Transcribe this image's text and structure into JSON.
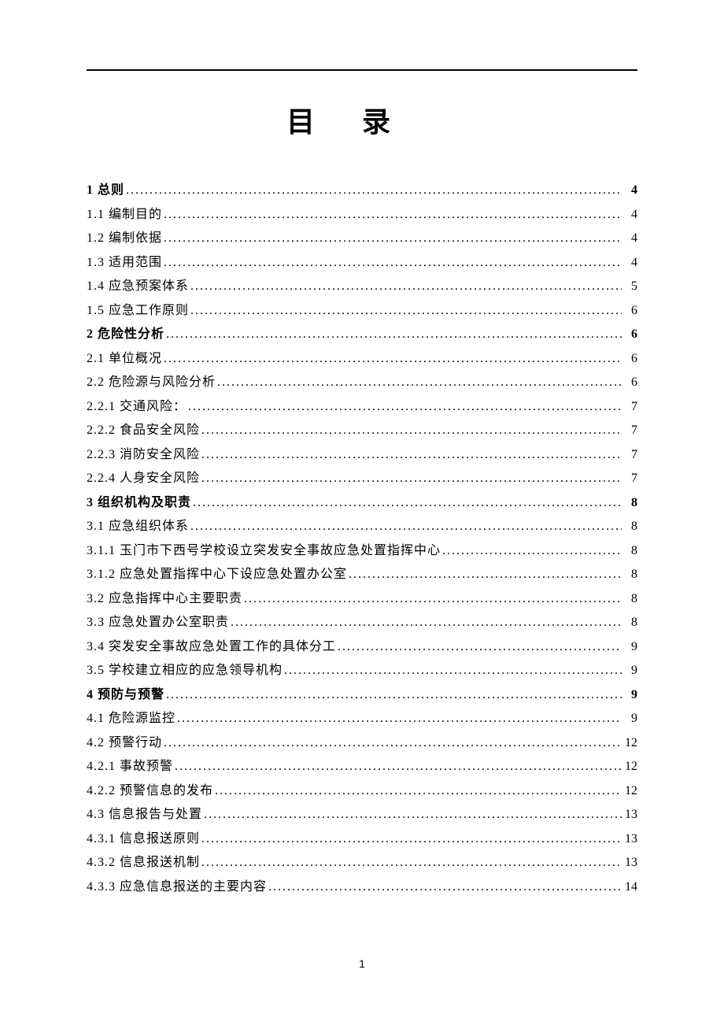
{
  "title": "目录",
  "page_number": "1",
  "entries": [
    {
      "label": "1 总则",
      "page": "4",
      "bold": true
    },
    {
      "label": "1.1 编制目的",
      "page": "4",
      "bold": false
    },
    {
      "label": "1.2 编制依据",
      "page": "4",
      "bold": false
    },
    {
      "label": "1.3 适用范围",
      "page": "4",
      "bold": false
    },
    {
      "label": "1.4 应急预案体系",
      "page": "5",
      "bold": false
    },
    {
      "label": "1.5 应急工作原则",
      "page": "6",
      "bold": false
    },
    {
      "label": "2 危险性分析",
      "page": "6",
      "bold": true
    },
    {
      "label": "2.1 单位概况",
      "page": "6",
      "bold": false
    },
    {
      "label": "2.2 危险源与风险分析",
      "page": "6",
      "bold": false
    },
    {
      "label": "2.2.1 交通风险：",
      "page": "7",
      "bold": false
    },
    {
      "label": "2.2.2 食品安全风险",
      "page": "7",
      "bold": false
    },
    {
      "label": "2.2.3 消防安全风险",
      "page": "7",
      "bold": false
    },
    {
      "label": "2.2.4 人身安全风险",
      "page": "7",
      "bold": false
    },
    {
      "label": "3 组织机构及职责",
      "page": "8",
      "bold": true
    },
    {
      "label": "3.1 应急组织体系",
      "page": "8",
      "bold": false
    },
    {
      "label": "3.1.1 玉门市下西号学校设立突发安全事故应急处置指挥中心",
      "page": "8",
      "bold": false
    },
    {
      "label": "3.1.2 应急处置指挥中心下设应急处置办公室",
      "page": "8",
      "bold": false
    },
    {
      "label": "3.2 应急指挥中心主要职责",
      "page": "8",
      "bold": false
    },
    {
      "label": "3.3 应急处置办公室职责",
      "page": "8",
      "bold": false
    },
    {
      "label": "3.4 突发安全事故应急处置工作的具体分工",
      "page": "9",
      "bold": false
    },
    {
      "label": "3.5 学校建立相应的应急领导机构",
      "page": "9",
      "bold": false
    },
    {
      "label": "4 预防与预警",
      "page": "9",
      "bold": true
    },
    {
      "label": "4.1 危险源监控",
      "page": "9",
      "bold": false
    },
    {
      "label": "4.2 预警行动",
      "page": "12",
      "bold": false
    },
    {
      "label": "4.2.1 事故预警",
      "page": "12",
      "bold": false
    },
    {
      "label": "4.2.2 预警信息的发布",
      "page": "12",
      "bold": false
    },
    {
      "label": "4.3 信息报告与处置",
      "page": "13",
      "bold": false
    },
    {
      "label": "4.3.1 信息报送原则",
      "page": "13",
      "bold": false
    },
    {
      "label": "4.3.2 信息报送机制",
      "page": "13",
      "bold": false
    },
    {
      "label": "4.3.3 应急信息报送的主要内容",
      "page": "14",
      "bold": false
    }
  ]
}
